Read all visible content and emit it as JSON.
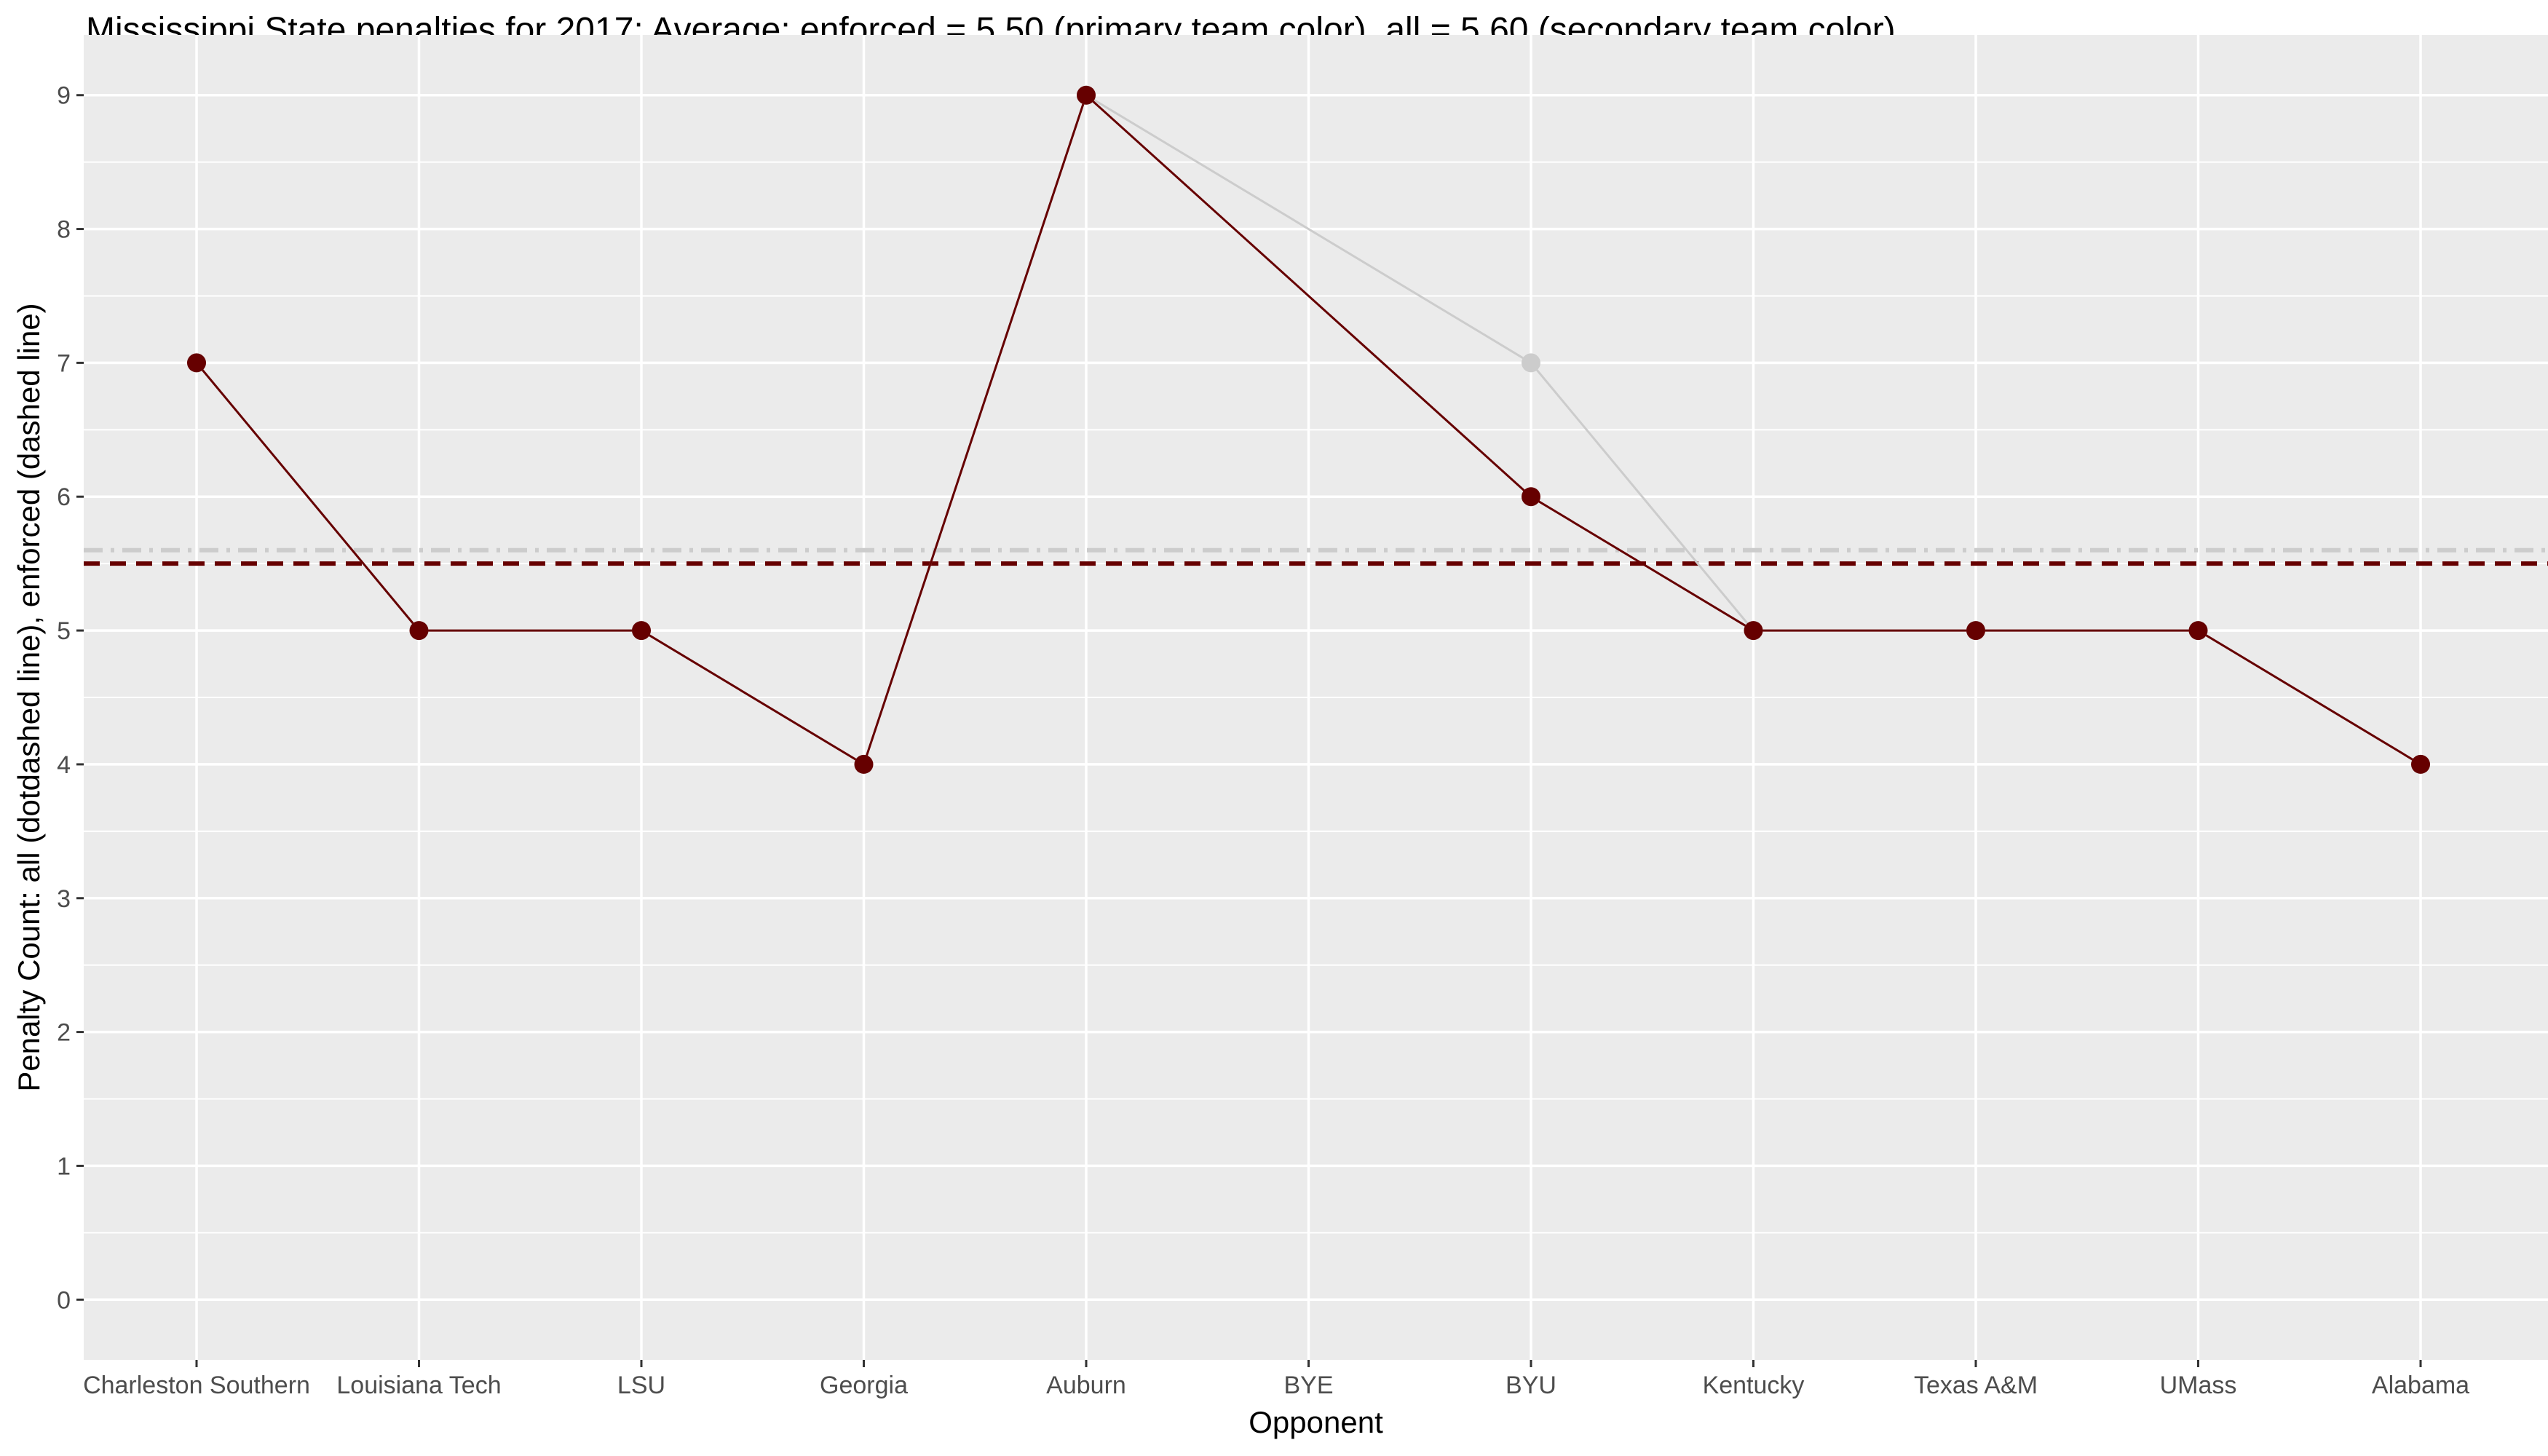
{
  "chart_data": {
    "type": "line",
    "title": "Mississippi State penalties for 2017; Average: enforced = 5.50 (primary team color), all = 5.60 (secondary team color)",
    "xlabel": "Opponent",
    "ylabel": "Penalty Count: all (dotdashed line), enforced (dashed line)",
    "categories": [
      "Charleston Southern",
      "Louisiana Tech",
      "LSU",
      "Georgia",
      "Auburn",
      "BYE",
      "BYU",
      "Kentucky",
      "Texas A&M",
      "UMass",
      "Alabama"
    ],
    "series": [
      {
        "key": "all",
        "color": "#cccccc",
        "values": [
          7,
          5,
          5,
          4,
          9,
          null,
          7,
          5,
          5,
          5,
          4
        ]
      },
      {
        "key": "enforced",
        "color": "#660000",
        "values": [
          7,
          5,
          5,
          4,
          9,
          null,
          6,
          5,
          5,
          5,
          4
        ]
      }
    ],
    "reference_lines": [
      {
        "key": "all_average",
        "value": 5.6,
        "style": "dotdashed",
        "color": "#cccccc"
      },
      {
        "key": "enforced_average",
        "value": 5.5,
        "style": "dashed",
        "color": "#660000"
      }
    ],
    "ylim": [
      -0.45,
      9.45
    ],
    "yticks": [
      0,
      1,
      2,
      3,
      4,
      5,
      6,
      7,
      8,
      9
    ],
    "grid": true,
    "panel_background": "#ebebeb",
    "legend": "none"
  }
}
